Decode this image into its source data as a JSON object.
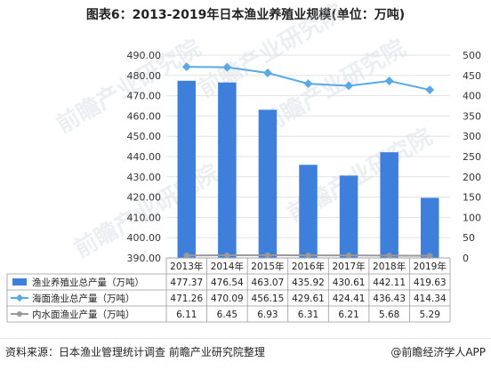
{
  "title": "图表6：2013-2019年日本渔业养殖业规模(单位：万吨)",
  "watermark": "前瞻产业研究院",
  "chart_data": {
    "type": "bar",
    "categories": [
      "2013年",
      "2014年",
      "2015年",
      "2016年",
      "2017年",
      "2018年",
      "2019年"
    ],
    "y_left": {
      "ticks": [
        "490.00",
        "480.00",
        "470.00",
        "460.00",
        "450.00",
        "440.00",
        "430.00",
        "420.00",
        "410.00",
        "400.00",
        "390.00"
      ],
      "ylim": [
        390,
        490
      ]
    },
    "y_right": {
      "ticks": [
        "500",
        "450",
        "400",
        "350",
        "300",
        "250",
        "200",
        "150",
        "100",
        "50",
        "0"
      ],
      "ylim": [
        0,
        500
      ]
    },
    "series": [
      {
        "name": "渔业养殖业总产量（万吨）",
        "type": "bar",
        "axis": "left",
        "color": "#3f7fdc",
        "values": [
          477.37,
          476.54,
          463.07,
          435.92,
          430.61,
          442.11,
          419.63
        ],
        "labels": [
          "477.37",
          "476.54",
          "463.07",
          "435.92",
          "430.61",
          "442.11",
          "419.63"
        ]
      },
      {
        "name": "海面渔业总产量（万吨）",
        "type": "line",
        "axis": "right",
        "color": "#5aa9e6",
        "values": [
          471.26,
          470.09,
          456.15,
          429.61,
          424.41,
          436.43,
          414.34
        ],
        "labels": [
          "471.26",
          "470.09",
          "456.15",
          "429.61",
          "424.41",
          "436.43",
          "414.34"
        ]
      },
      {
        "name": "内水面渔业产量（万吨）",
        "type": "line",
        "axis": "right",
        "color": "#999999",
        "values": [
          6.11,
          6.45,
          6.93,
          6.31,
          6.21,
          5.68,
          5.29
        ],
        "labels": [
          "6.11",
          "6.45",
          "6.93",
          "6.31",
          "6.21",
          "5.68",
          "5.29"
        ]
      }
    ]
  },
  "footer": {
    "source": "资料来源：日本渔业管理统计调查 前瞻产业研究院整理",
    "brand": "@前瞻经济学人APP"
  }
}
